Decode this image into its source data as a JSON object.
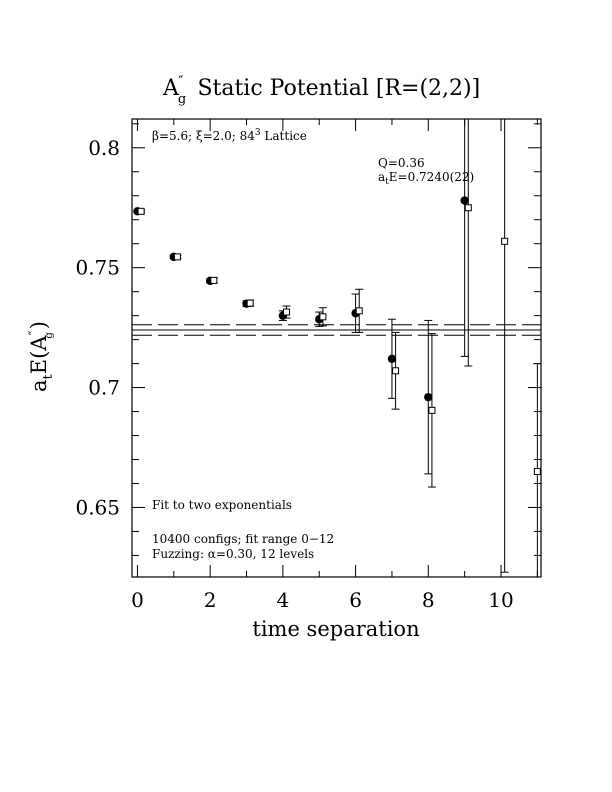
{
  "chart_data": {
    "type": "scatter",
    "title": "A″ Static Potential [R=(2,2)]",
    "title_main": "A",
    "title_sub": "g",
    "title_sup": "″",
    "title_rest": "  Static Potential [R=(2,2)]",
    "xlabel": "time separation",
    "ylabel_main": "a",
    "ylabel_sub": "t",
    "ylabel_mid": "E(A",
    "ylabel_sup": "″",
    "ylabel_sub2": "g",
    "ylabel_end": ")",
    "xlim": [
      -0.15,
      11.1
    ],
    "ylim": [
      0.621,
      0.812
    ],
    "xticks": [
      0,
      2,
      4,
      6,
      8,
      10
    ],
    "xtick_labels": [
      "0",
      "2",
      "4",
      "6",
      "8",
      "10"
    ],
    "yticks": [
      0.65,
      0.7,
      0.75,
      0.8
    ],
    "ytick_labels": [
      "0.65",
      "0.7",
      "0.75",
      "0.8"
    ],
    "series": [
      {
        "marker": "filled-circle",
        "points": [
          {
            "x": 0,
            "y": 0.7735,
            "err": 0.0005
          },
          {
            "x": 1,
            "y": 0.7545,
            "err": 0.0006
          },
          {
            "x": 2,
            "y": 0.7445,
            "err": 0.0008
          },
          {
            "x": 3,
            "y": 0.735,
            "err": 0.0012
          },
          {
            "x": 4,
            "y": 0.73,
            "err": 0.002
          },
          {
            "x": 5,
            "y": 0.7285,
            "err": 0.003
          },
          {
            "x": 6,
            "y": 0.731,
            "err": 0.008
          },
          {
            "x": 7,
            "y": 0.712,
            "err": 0.0165
          },
          {
            "x": 8,
            "y": 0.696,
            "err": 0.032
          },
          {
            "x": 9,
            "y": 0.778,
            "err": 0.065
          }
        ]
      },
      {
        "marker": "open-square",
        "points": [
          {
            "x": 0.1,
            "y": 0.7735,
            "err": 0.0005
          },
          {
            "x": 1.1,
            "y": 0.7545,
            "err": 0.0006
          },
          {
            "x": 2.1,
            "y": 0.7447,
            "err": 0.001
          },
          {
            "x": 3.1,
            "y": 0.7352,
            "err": 0.0013
          },
          {
            "x": 4.1,
            "y": 0.7315,
            "err": 0.0025
          },
          {
            "x": 5.1,
            "y": 0.7295,
            "err": 0.0038
          },
          {
            "x": 6.1,
            "y": 0.732,
            "err": 0.009
          },
          {
            "x": 7.1,
            "y": 0.707,
            "err": 0.016
          },
          {
            "x": 8.1,
            "y": 0.6905,
            "err": 0.032
          },
          {
            "x": 9.1,
            "y": 0.775,
            "err": 0.066
          },
          {
            "x": 10.1,
            "y": 0.761,
            "err": 0.138
          },
          {
            "x": 11.0,
            "y": 0.665,
            "err": 0.045
          }
        ]
      }
    ],
    "fit": {
      "value": 0.724,
      "err": 0.0022,
      "x_range": [
        0,
        11
      ]
    },
    "annotations": {
      "lattice_beta": "β=5.6;",
      "lattice_xi": "ξ=2.0;",
      "lattice_size": "84",
      "lattice_sup": "3",
      "lattice_word": "Lattice",
      "q_value": "Q=0.36",
      "energy_prefix": "a",
      "energy_sub": "t",
      "energy_rest": "E=0.7240(22)",
      "fit_label": "Fit to two exponentials",
      "configs": "10400 configs; fit range 0−12",
      "fuzzing": "Fuzzing: α=0.30, 12 levels"
    }
  }
}
